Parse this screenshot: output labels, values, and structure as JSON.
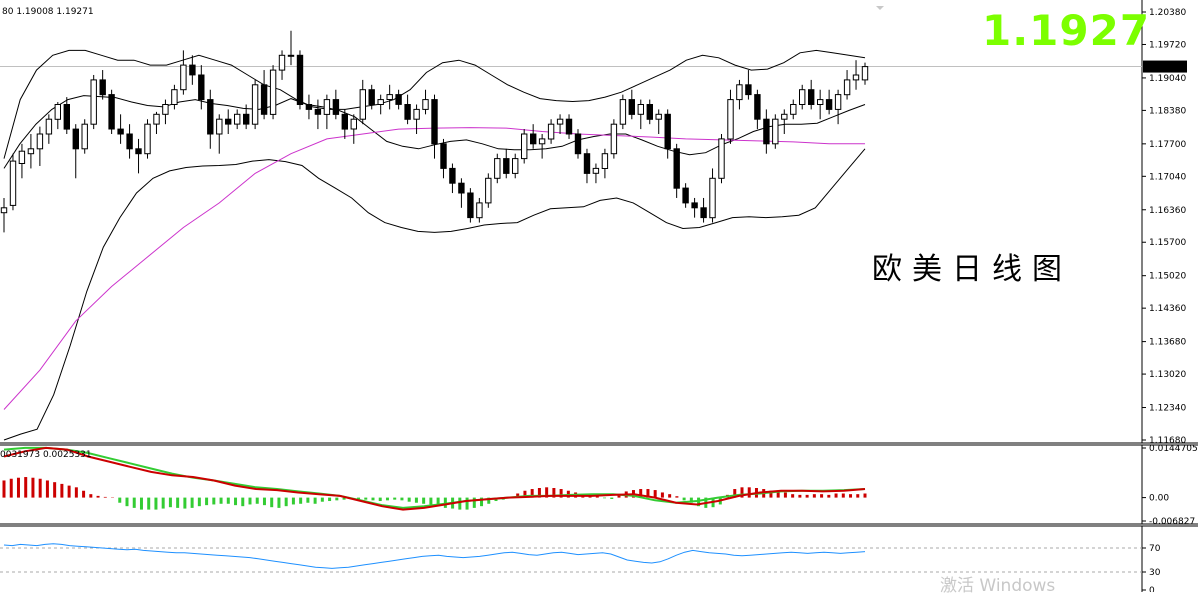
{
  "chart_data": [
    {
      "type": "candlestick",
      "header_text": "80 1.19008 1.19271",
      "current_price_label": "1.19271",
      "overlay_price": "1.1927",
      "caption": "欧美日线图",
      "y_axis": {
        "min": 1.1168,
        "max": 1.2038,
        "ticks": [
          "1.20380",
          "1.19720",
          "1.19040",
          "1.18380",
          "1.17700",
          "1.17040",
          "1.16360",
          "1.15700",
          "1.15020",
          "1.14360",
          "1.13680",
          "1.13020",
          "1.12340",
          "1.11680"
        ]
      },
      "current_price": 1.19271,
      "colors": {
        "candle": "#000000",
        "band": "#000000",
        "ma": "#cc33cc",
        "price_line": "#c0c0c0"
      },
      "candles": [
        [
          1.163,
          1.166,
          1.159,
          1.164
        ],
        [
          1.1645,
          1.175,
          1.1635,
          1.1735
        ],
        [
          1.173,
          1.177,
          1.17,
          1.1755
        ],
        [
          1.175,
          1.179,
          1.172,
          1.176
        ],
        [
          1.176,
          1.1805,
          1.1725,
          1.179
        ],
        [
          1.179,
          1.183,
          1.177,
          1.182
        ],
        [
          1.182,
          1.1855,
          1.18,
          1.185
        ],
        [
          1.185,
          1.1865,
          1.179,
          1.18
        ],
        [
          1.18,
          1.181,
          1.17,
          1.176
        ],
        [
          1.176,
          1.182,
          1.175,
          1.181
        ],
        [
          1.181,
          1.191,
          1.18,
          1.19
        ],
        [
          1.19,
          1.192,
          1.186,
          1.187
        ],
        [
          1.187,
          1.188,
          1.179,
          1.18
        ],
        [
          1.18,
          1.183,
          1.177,
          1.179
        ],
        [
          1.179,
          1.181,
          1.174,
          1.176
        ],
        [
          1.176,
          1.178,
          1.171,
          1.175
        ],
        [
          1.175,
          1.182,
          1.174,
          1.181
        ],
        [
          1.181,
          1.1835,
          1.179,
          1.183
        ],
        [
          1.183,
          1.186,
          1.181,
          1.185
        ],
        [
          1.185,
          1.189,
          1.184,
          1.188
        ],
        [
          1.188,
          1.196,
          1.187,
          1.193
        ],
        [
          1.193,
          1.195,
          1.189,
          1.191
        ],
        [
          1.191,
          1.193,
          1.184,
          1.186
        ],
        [
          1.186,
          1.188,
          1.176,
          1.179
        ],
        [
          1.179,
          1.183,
          1.175,
          1.182
        ],
        [
          1.182,
          1.184,
          1.179,
          1.181
        ],
        [
          1.181,
          1.184,
          1.18,
          1.183
        ],
        [
          1.183,
          1.185,
          1.18,
          1.181
        ],
        [
          1.181,
          1.19,
          1.18,
          1.189
        ],
        [
          1.189,
          1.192,
          1.182,
          1.183
        ],
        [
          1.183,
          1.193,
          1.182,
          1.192
        ],
        [
          1.192,
          1.196,
          1.19,
          1.195
        ],
        [
          1.195,
          1.2,
          1.193,
          1.195
        ],
        [
          1.195,
          1.196,
          1.184,
          1.185
        ],
        [
          1.185,
          1.187,
          1.182,
          1.184
        ],
        [
          1.184,
          1.186,
          1.18,
          1.183
        ],
        [
          1.183,
          1.187,
          1.18,
          1.186
        ],
        [
          1.186,
          1.188,
          1.182,
          1.183
        ],
        [
          1.183,
          1.184,
          1.178,
          1.18
        ],
        [
          1.18,
          1.183,
          1.177,
          1.182
        ],
        [
          1.182,
          1.19,
          1.181,
          1.188
        ],
        [
          1.188,
          1.189,
          1.184,
          1.185
        ],
        [
          1.185,
          1.187,
          1.183,
          1.186
        ],
        [
          1.186,
          1.189,
          1.184,
          1.187
        ],
        [
          1.187,
          1.188,
          1.184,
          1.185
        ],
        [
          1.185,
          1.187,
          1.181,
          1.182
        ],
        [
          1.182,
          1.185,
          1.179,
          1.184
        ],
        [
          1.184,
          1.188,
          1.183,
          1.186
        ],
        [
          1.186,
          1.187,
          1.174,
          1.177
        ],
        [
          1.177,
          1.178,
          1.17,
          1.172
        ],
        [
          1.172,
          1.173,
          1.167,
          1.169
        ],
        [
          1.169,
          1.17,
          1.164,
          1.167
        ],
        [
          1.167,
          1.168,
          1.161,
          1.162
        ],
        [
          1.162,
          1.166,
          1.161,
          1.165
        ],
        [
          1.165,
          1.171,
          1.164,
          1.17
        ],
        [
          1.17,
          1.175,
          1.169,
          1.174
        ],
        [
          1.174,
          1.176,
          1.17,
          1.171
        ],
        [
          1.171,
          1.175,
          1.17,
          1.174
        ],
        [
          1.174,
          1.18,
          1.173,
          1.179
        ],
        [
          1.179,
          1.181,
          1.176,
          1.177
        ],
        [
          1.177,
          1.179,
          1.174,
          1.178
        ],
        [
          1.178,
          1.182,
          1.177,
          1.181
        ],
        [
          1.181,
          1.183,
          1.179,
          1.182
        ],
        [
          1.182,
          1.183,
          1.178,
          1.179
        ],
        [
          1.179,
          1.18,
          1.174,
          1.175
        ],
        [
          1.175,
          1.176,
          1.169,
          1.171
        ],
        [
          1.171,
          1.173,
          1.169,
          1.172
        ],
        [
          1.172,
          1.176,
          1.17,
          1.175
        ],
        [
          1.175,
          1.182,
          1.174,
          1.181
        ],
        [
          1.181,
          1.187,
          1.18,
          1.186
        ],
        [
          1.186,
          1.188,
          1.182,
          1.183
        ],
        [
          1.183,
          1.186,
          1.18,
          1.185
        ],
        [
          1.185,
          1.186,
          1.181,
          1.182
        ],
        [
          1.182,
          1.184,
          1.179,
          1.183
        ],
        [
          1.183,
          1.184,
          1.174,
          1.176
        ],
        [
          1.176,
          1.177,
          1.166,
          1.168
        ],
        [
          1.168,
          1.169,
          1.164,
          1.165
        ],
        [
          1.165,
          1.166,
          1.162,
          1.164
        ],
        [
          1.164,
          1.166,
          1.161,
          1.162
        ],
        [
          1.162,
          1.172,
          1.161,
          1.17
        ],
        [
          1.17,
          1.179,
          1.169,
          1.178
        ],
        [
          1.178,
          1.188,
          1.177,
          1.186
        ],
        [
          1.186,
          1.19,
          1.184,
          1.189
        ],
        [
          1.189,
          1.192,
          1.186,
          1.187
        ],
        [
          1.187,
          1.188,
          1.18,
          1.182
        ],
        [
          1.182,
          1.184,
          1.175,
          1.177
        ],
        [
          1.177,
          1.183,
          1.176,
          1.182
        ],
        [
          1.182,
          1.184,
          1.179,
          1.183
        ],
        [
          1.183,
          1.186,
          1.182,
          1.185
        ],
        [
          1.185,
          1.189,
          1.184,
          1.188
        ],
        [
          1.188,
          1.19,
          1.184,
          1.185
        ],
        [
          1.185,
          1.188,
          1.182,
          1.186
        ],
        [
          1.186,
          1.188,
          1.183,
          1.184
        ],
        [
          1.184,
          1.188,
          1.181,
          1.187
        ],
        [
          1.187,
          1.192,
          1.186,
          1.19
        ],
        [
          1.19,
          1.194,
          1.188,
          1.191
        ],
        [
          1.19,
          1.1935,
          1.189,
          1.1927
        ]
      ],
      "upper_band": [
        1.174,
        1.186,
        1.192,
        1.195,
        1.196,
        1.196,
        1.195,
        1.194,
        1.194,
        1.193,
        1.193,
        1.194,
        1.195,
        1.194,
        1.193,
        1.191,
        1.189,
        1.188,
        1.186,
        1.1845,
        1.184,
        1.184,
        1.1845,
        1.185,
        1.186,
        1.188,
        1.1915,
        1.1935,
        1.194,
        1.193,
        1.191,
        1.189,
        1.1875,
        1.1862,
        1.1858,
        1.1856,
        1.1858,
        1.1865,
        1.1875,
        1.189,
        1.1905,
        1.192,
        1.194,
        1.195,
        1.1945,
        1.193,
        1.192,
        1.1922,
        1.1935,
        1.1955,
        1.196,
        1.1955,
        1.195,
        1.1945
      ],
      "middle_band": [
        1.172,
        1.177,
        1.181,
        1.184,
        1.186,
        1.1868,
        1.1866,
        1.1864,
        1.1855,
        1.1848,
        1.1845,
        1.1855,
        1.186,
        1.1852,
        1.1848,
        1.1842,
        1.184,
        1.1848,
        1.1862,
        1.185,
        1.1845,
        1.1838,
        1.1825,
        1.18,
        1.1775,
        1.1765,
        1.176,
        1.1768,
        1.1775,
        1.1778,
        1.177,
        1.176,
        1.1758,
        1.1758,
        1.176,
        1.1765,
        1.1778,
        1.1785,
        1.179,
        1.179,
        1.1778,
        1.1765,
        1.1755,
        1.1748,
        1.1752,
        1.1768,
        1.178,
        1.1795,
        1.1805,
        1.181,
        1.181,
        1.1812,
        1.1825,
        1.1838,
        1.185
      ],
      "lower_band": [
        1.1168,
        1.118,
        1.119,
        1.126,
        1.136,
        1.147,
        1.156,
        1.162,
        1.167,
        1.17,
        1.1715,
        1.1722,
        1.1725,
        1.1726,
        1.1728,
        1.1735,
        1.1738,
        1.1734,
        1.1726,
        1.17,
        1.168,
        1.166,
        1.163,
        1.161,
        1.16,
        1.1592,
        1.159,
        1.1592,
        1.1598,
        1.1605,
        1.1608,
        1.161,
        1.1625,
        1.1638,
        1.164,
        1.1642,
        1.1655,
        1.166,
        1.165,
        1.163,
        1.161,
        1.1598,
        1.16,
        1.161,
        1.162,
        1.1622,
        1.162,
        1.1622,
        1.1625,
        1.164,
        1.168,
        1.172,
        1.176
      ],
      "ma": [
        1.123,
        1.131,
        1.141,
        1.148,
        1.154,
        1.16,
        1.165,
        1.171,
        1.175,
        1.178,
        1.179,
        1.18,
        1.1802,
        1.1803,
        1.1802,
        1.1795,
        1.179,
        1.1787,
        1.1784,
        1.178,
        1.1778,
        1.1776,
        1.1774,
        1.177,
        1.177
      ]
    },
    {
      "type": "macd",
      "header_text": "0031973 0.0025331",
      "y_axis": {
        "min": -0.006827,
        "max": 0.0144705,
        "ticks": [
          "0.0144705",
          "0.00",
          "-0.006827"
        ]
      },
      "colors": {
        "hist_pos": "#cc0000",
        "hist_neg": "#33cc33",
        "main_line": "#33cc33",
        "signal_line": "#cc0000"
      },
      "histogram": [
        0.005,
        0.0055,
        0.0058,
        0.006,
        0.0058,
        0.0055,
        0.005,
        0.0045,
        0.004,
        0.0035,
        0.003,
        0.002,
        0.001,
        0.0005,
        0.0002,
        0.0001,
        -0.0015,
        -0.0025,
        -0.003,
        -0.0035,
        -0.0035,
        -0.0035,
        -0.0032,
        -0.0028,
        -0.003,
        -0.0032,
        -0.003,
        -0.0025,
        -0.0022,
        -0.002,
        -0.0018,
        -0.0018,
        -0.0022,
        -0.0025,
        -0.002,
        -0.0018,
        -0.0022,
        -0.0028,
        -0.003,
        -0.0025,
        -0.002,
        -0.0018,
        -0.0015,
        -0.0018,
        -0.0012,
        -0.001,
        -0.0008,
        -0.0006,
        -0.0005,
        -0.0004,
        -0.0006,
        -0.0008,
        -0.001,
        -0.0008,
        -0.0006,
        -0.0008,
        -0.0012,
        -0.0015,
        -0.0018,
        -0.002,
        -0.0025,
        -0.003,
        -0.0032,
        -0.0035,
        -0.0035,
        -0.003,
        -0.0025,
        -0.0018,
        -0.001,
        -0.0006,
        0.0003,
        0.0012,
        0.002,
        0.0025,
        0.0028,
        0.003,
        0.0028,
        0.0025,
        0.002,
        0.0015,
        0.0008,
        0.0004,
        0.0004,
        -0.0002,
        -0.0004,
        0.001,
        0.0018,
        0.0022,
        0.0025,
        0.0025,
        0.0022,
        0.0015,
        0.001,
        0.0004,
        -0.0008,
        -0.0015,
        -0.0025,
        -0.003,
        -0.0028,
        -0.002,
        0.0008,
        0.0025,
        0.003,
        0.003,
        0.0028,
        0.0025,
        0.002,
        0.0018,
        0.0015,
        0.001,
        0.0008,
        0.0008,
        0.001,
        0.001,
        0.0008,
        0.0012,
        0.0012,
        0.001,
        0.001,
        0.0012
      ],
      "main_line": [
        0.014,
        0.0145,
        0.0145,
        0.014,
        0.013,
        0.0115,
        0.01,
        0.0085,
        0.007,
        0.0058,
        0.005,
        0.004,
        0.003,
        0.0025,
        0.0018,
        0.0012,
        0.0005,
        -0.0008,
        -0.0022,
        -0.003,
        -0.0025,
        -0.0018,
        -0.001,
        -0.0005,
        0.0,
        0.0005,
        0.0005,
        0.0008,
        0.001,
        0.001,
        0.0005,
        -0.0008,
        -0.0015,
        -0.001,
        0.0,
        0.0008,
        0.0012,
        0.0018,
        0.002,
        0.002,
        0.0022,
        0.0025
      ],
      "signal_line": [
        0.012,
        0.0135,
        0.0145,
        0.014,
        0.012,
        0.0105,
        0.009,
        0.0075,
        0.0065,
        0.006,
        0.005,
        0.0035,
        0.0025,
        0.0022,
        0.0015,
        0.001,
        0.0005,
        -0.001,
        -0.0025,
        -0.0035,
        -0.003,
        -0.002,
        -0.001,
        -0.0005,
        0.0,
        0.0002,
        0.0005,
        0.0005,
        0.0005,
        0.0008,
        0.001,
        0.0,
        -0.0015,
        -0.002,
        -0.001,
        0.0005,
        0.0015,
        0.002,
        0.002,
        0.0018,
        0.002,
        0.0025
      ]
    },
    {
      "type": "line",
      "y_axis": {
        "min": 0,
        "max": 100,
        "ticks": [
          "70",
          "30",
          "0"
        ]
      },
      "levels": [
        70,
        30
      ],
      "colors": {
        "line": "#1e90ff",
        "level": "#aaaaaa"
      },
      "values": [
        75,
        74,
        76,
        75,
        74,
        76,
        77,
        76,
        74,
        73,
        72,
        71,
        70,
        69,
        68,
        67,
        68,
        66,
        65,
        64,
        63,
        62,
        62,
        61,
        60,
        59,
        58,
        57,
        56,
        55,
        54,
        52,
        50,
        48,
        46,
        44,
        42,
        40,
        38,
        37,
        36,
        37,
        38,
        40,
        42,
        44,
        46,
        48,
        50,
        52,
        54,
        56,
        57,
        58,
        56,
        55,
        54,
        55,
        56,
        58,
        60,
        62,
        63,
        61,
        59,
        58,
        60,
        62,
        63,
        61,
        59,
        60,
        61,
        62,
        60,
        55,
        50,
        48,
        46,
        45,
        47,
        52,
        58,
        63,
        66,
        64,
        62,
        61,
        60,
        58,
        57,
        58,
        59,
        60,
        61,
        62,
        63,
        62,
        61,
        62,
        63,
        62,
        61,
        62,
        63,
        64
      ]
    }
  ],
  "watermark": "激活 Windows"
}
